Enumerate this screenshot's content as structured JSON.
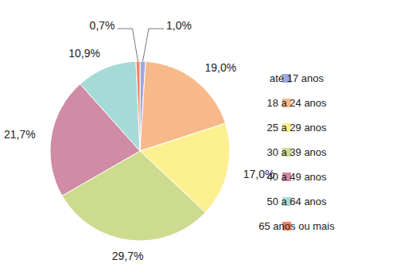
{
  "chart_data": {
    "type": "pie",
    "categories": [
      "até 17 anos",
      "18 a 24 anos",
      "25 a 29 anos",
      "30 a 39 anos",
      "40 a 49 anos",
      "50 a 64 anos",
      "65 anos ou mais"
    ],
    "values": [
      1.0,
      19.0,
      17.0,
      29.7,
      21.7,
      10.9,
      0.7
    ],
    "value_labels": [
      "1,0%",
      "19,0%",
      "17,0%",
      "29,7%",
      "21,7%",
      "10,9%",
      "0,7%"
    ],
    "colors": [
      "#9ea9df",
      "#f7b98a",
      "#fdf091",
      "#cddb8e",
      "#d08ba5",
      "#a5dbd7",
      "#f08569"
    ],
    "data_labels": true,
    "legend": "right"
  }
}
